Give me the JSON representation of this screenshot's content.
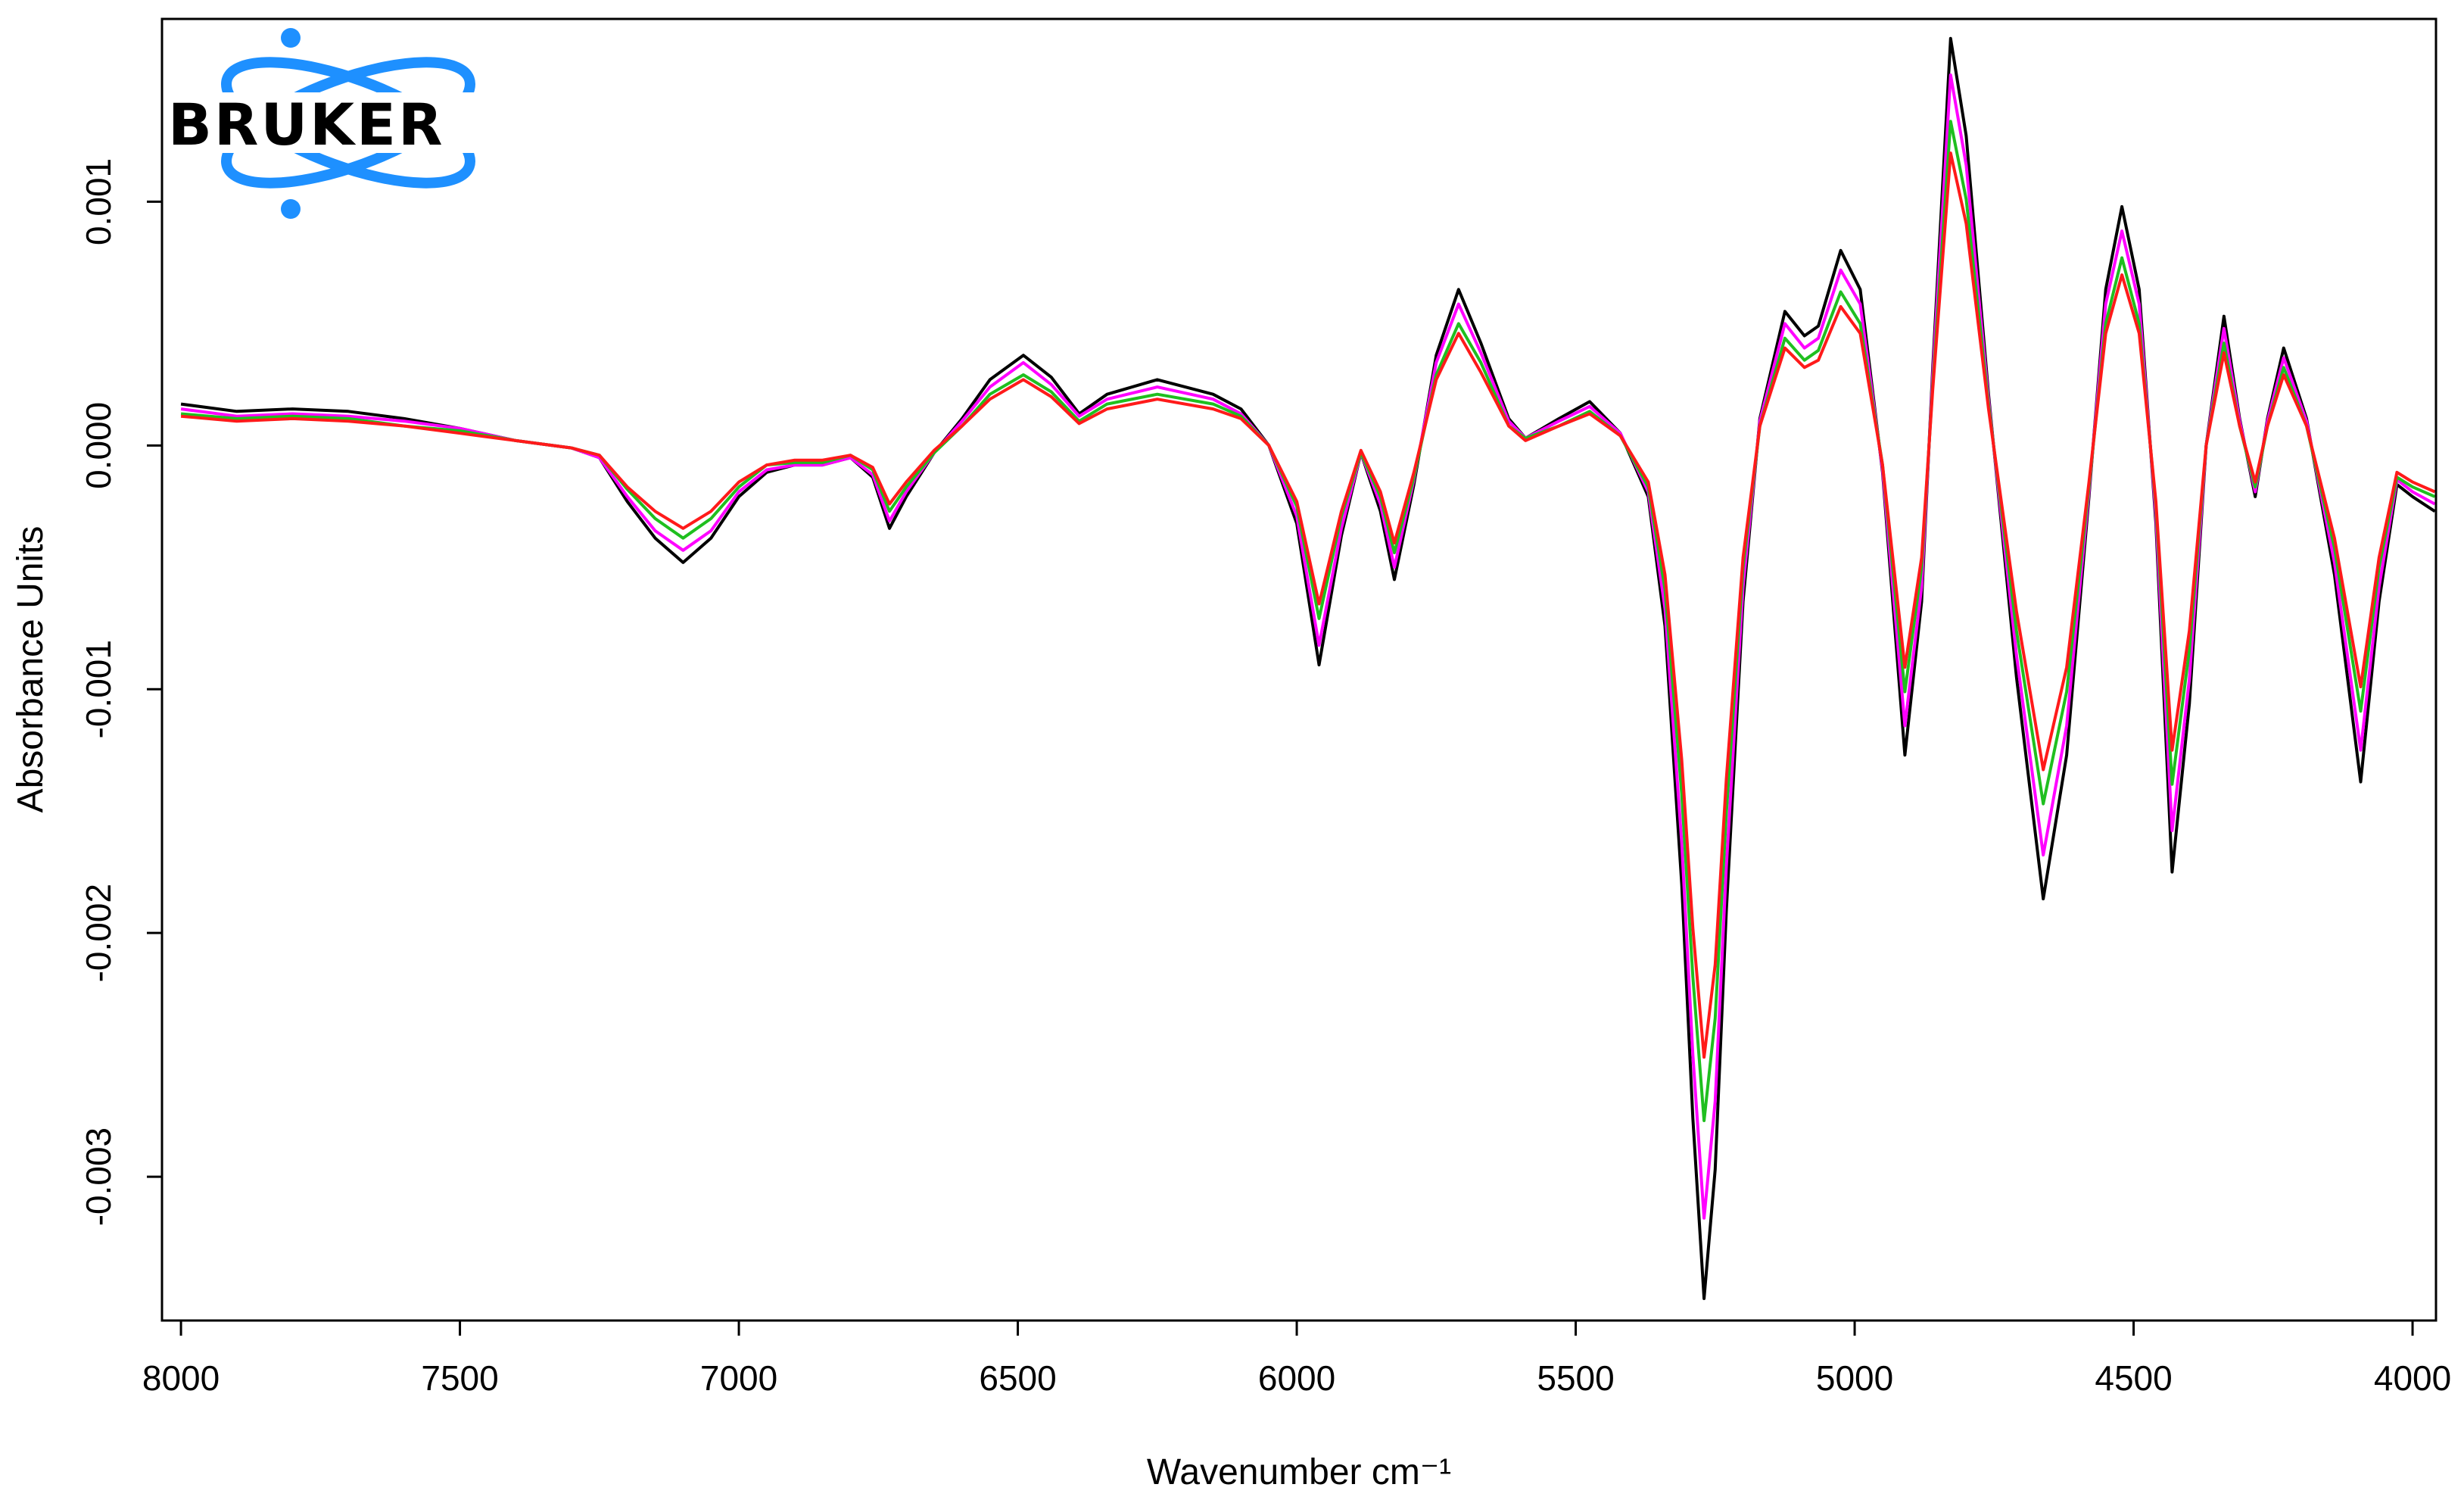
{
  "chart_data": {
    "type": "line",
    "logo": "BRUKER",
    "x_label": "Wavenumber cm⁻¹",
    "y_label": "Absorbance Units",
    "xlim": [
      8034,
      3958
    ],
    "ylim": [
      -0.00359,
      0.00175
    ],
    "xticks": [
      8000,
      7500,
      7000,
      6500,
      6000,
      5500,
      5000,
      4500,
      4000
    ],
    "yticks": [
      -0.003,
      -0.002,
      -0.001,
      {
        "value": 0,
        "label": "0.000"
      },
      0.001
    ],
    "x": [
      8000,
      7900,
      7800,
      7700,
      7600,
      7500,
      7400,
      7300,
      7250,
      7200,
      7150,
      7100,
      7050,
      7000,
      6950,
      6900,
      6850,
      6800,
      6760,
      6730,
      6700,
      6650,
      6600,
      6550,
      6490,
      6440,
      6390,
      6340,
      6250,
      6150,
      6100,
      6050,
      6000,
      5960,
      5920,
      5885,
      5850,
      5825,
      5790,
      5750,
      5710,
      5670,
      5620,
      5590,
      5530,
      5475,
      5420,
      5370,
      5340,
      5310,
      5290,
      5270,
      5250,
      5230,
      5200,
      5170,
      5125,
      5090,
      5065,
      5025,
      4990,
      4950,
      4910,
      4880,
      4860,
      4828,
      4800,
      4760,
      4710,
      4662,
      4620,
      4580,
      4550,
      4521,
      4490,
      4460,
      4431,
      4400,
      4370,
      4338,
      4310,
      4282,
      4260,
      4231,
      4190,
      4140,
      4093,
      4060,
      4028,
      4000,
      3960
    ],
    "series": [
      {
        "color": "#000000",
        "values": [
          0.00017,
          0.00014,
          0.00015,
          0.00014,
          0.00011,
          7e-05,
          2e-05,
          -1e-05,
          -5e-05,
          -0.00023,
          -0.00038,
          -0.00048,
          -0.00038,
          -0.00021,
          -0.00011,
          -8e-05,
          -8e-05,
          -5e-05,
          -0.00013,
          -0.00034,
          -0.00021,
          -3e-05,
          0.00011,
          0.00027,
          0.00037,
          0.00028,
          0.00013,
          0.00021,
          0.00027,
          0.00021,
          0.00015,
          0,
          -0.00032,
          -0.0009,
          -0.00037,
          -3e-05,
          -0.00027,
          -0.00055,
          -0.00016,
          0.00037,
          0.00064,
          0.00042,
          0.00011,
          3e-05,
          0.00011,
          0.00018,
          5e-05,
          -0.00021,
          -0.00074,
          -0.0018,
          -0.00276,
          -0.0035,
          -0.00297,
          -0.00191,
          -0.00064,
          0.00011,
          0.00055,
          0.00045,
          0.00049,
          0.0008,
          0.00064,
          -0.00011,
          -0.00127,
          -0.00064,
          0.00032,
          0.00167,
          0.00127,
          0.00021,
          -0.00095,
          -0.00186,
          -0.00127,
          -0.00021,
          0.00064,
          0.00098,
          0.00064,
          -0.00032,
          -0.00175,
          -0.00106,
          0,
          0.00053,
          0.00011,
          -0.00021,
          0.00011,
          0.0004,
          0.00011,
          -0.00053,
          -0.00138,
          -0.00064,
          -0.00016,
          -0.00021,
          -0.00027
        ]
      },
      {
        "color": "#ff00ff",
        "values": [
          0.00015,
          0.00012,
          0.00013,
          0.00012,
          0.0001,
          7e-05,
          2e-05,
          -1e-05,
          -5e-05,
          -0.00021,
          -0.00035,
          -0.00043,
          -0.00035,
          -0.00019,
          -0.0001,
          -8e-05,
          -8e-05,
          -5e-05,
          -0.00012,
          -0.00031,
          -0.00019,
          -3e-05,
          0.0001,
          0.00024,
          0.00034,
          0.00025,
          0.00012,
          0.00019,
          0.00024,
          0.00019,
          0.00013,
          0,
          -0.00029,
          -0.00082,
          -0.00034,
          -3e-05,
          -0.00024,
          -0.0005,
          -0.00014,
          0.00034,
          0.00058,
          0.00038,
          0.0001,
          3e-05,
          0.0001,
          0.00016,
          5e-05,
          -0.00019,
          -0.00067,
          -0.00163,
          -0.0025,
          -0.00317,
          -0.00269,
          -0.00173,
          -0.00058,
          0.0001,
          0.0005,
          0.0004,
          0.00044,
          0.00072,
          0.00058,
          -0.0001,
          -0.00115,
          -0.00058,
          0.00029,
          0.00152,
          0.00115,
          0.00019,
          -0.00086,
          -0.00168,
          -0.00115,
          -0.00019,
          0.00058,
          0.00088,
          0.00058,
          -0.00029,
          -0.00158,
          -0.00096,
          0,
          0.00048,
          0.0001,
          -0.00019,
          0.0001,
          0.00036,
          0.0001,
          -0.00048,
          -0.00125,
          -0.00058,
          -0.00014,
          -0.00019,
          -0.00024
        ]
      },
      {
        "color": "#1fbf1f",
        "values": [
          0.00013,
          0.00011,
          0.00012,
          0.00011,
          8e-05,
          6e-05,
          2e-05,
          -1e-05,
          -4e-05,
          -0.00018,
          -0.0003,
          -0.00038,
          -0.0003,
          -0.00017,
          -8e-05,
          -7e-05,
          -7e-05,
          -4e-05,
          -0.0001,
          -0.00027,
          -0.00017,
          -3e-05,
          8e-05,
          0.00021,
          0.00029,
          0.00022,
          0.0001,
          0.00017,
          0.00021,
          0.00017,
          0.00012,
          0,
          -0.00025,
          -0.00071,
          -0.00029,
          -3e-05,
          -0.00021,
          -0.00044,
          -0.00013,
          0.00029,
          0.0005,
          0.00034,
          8e-05,
          3e-05,
          8e-05,
          0.00014,
          4e-05,
          -0.00017,
          -0.00059,
          -0.00143,
          -0.00218,
          -0.00277,
          -0.00235,
          -0.00151,
          -0.0005,
          8e-05,
          0.00044,
          0.00035,
          0.00039,
          0.00063,
          0.0005,
          -8e-05,
          -0.00101,
          -0.0005,
          0.00025,
          0.00133,
          0.00101,
          0.00017,
          -0.00076,
          -0.00147,
          -0.00101,
          -0.00017,
          0.0005,
          0.00077,
          0.0005,
          -0.00025,
          -0.00139,
          -0.00084,
          0,
          0.00042,
          8e-05,
          -0.00017,
          8e-05,
          0.00032,
          8e-05,
          -0.00042,
          -0.00109,
          -0.0005,
          -0.00013,
          -0.00017,
          -0.00021
        ]
      },
      {
        "color": "#ff1a1a",
        "values": [
          0.00012,
          0.0001,
          0.00011,
          0.0001,
          8e-05,
          5e-05,
          2e-05,
          -1e-05,
          -4e-05,
          -0.00017,
          -0.00027,
          -0.00034,
          -0.00027,
          -0.00015,
          -8e-05,
          -6e-05,
          -6e-05,
          -4e-05,
          -9e-05,
          -0.00024,
          -0.00015,
          -2e-05,
          8e-05,
          0.00019,
          0.00027,
          0.0002,
          9e-05,
          0.00015,
          0.00019,
          0.00015,
          0.00011,
          0,
          -0.00023,
          -0.00065,
          -0.00027,
          -2e-05,
          -0.00019,
          -0.0004,
          -0.00011,
          0.00027,
          0.00046,
          0.0003,
          8e-05,
          2e-05,
          8e-05,
          0.00013,
          4e-05,
          -0.00015,
          -0.00053,
          -0.00129,
          -0.00198,
          -0.00251,
          -0.00213,
          -0.00137,
          -0.00046,
          8e-05,
          0.0004,
          0.00032,
          0.00035,
          0.00057,
          0.00046,
          -8e-05,
          -0.00091,
          -0.00046,
          0.00023,
          0.0012,
          0.00091,
          0.00015,
          -0.00068,
          -0.00133,
          -0.00091,
          -0.00015,
          0.00046,
          0.0007,
          0.00046,
          -0.00023,
          -0.00125,
          -0.00076,
          0,
          0.00038,
          8e-05,
          -0.00015,
          8e-05,
          0.00029,
          8e-05,
          -0.00038,
          -0.00099,
          -0.00046,
          -0.00011,
          -0.00015,
          -0.00019
        ]
      }
    ]
  }
}
